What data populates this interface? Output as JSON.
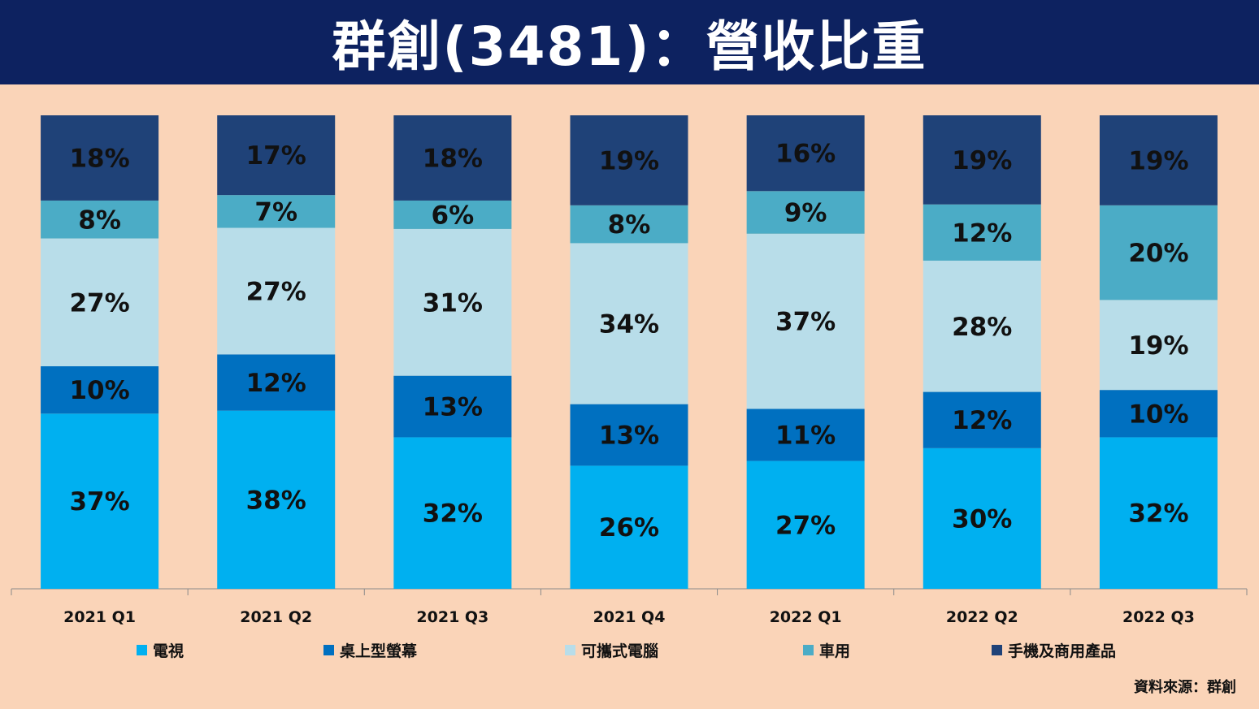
{
  "title": "群創(3481)：營收比重",
  "source": "資料來源：群創",
  "chart_data": {
    "type": "bar",
    "stacked": true,
    "percent": true,
    "categories": [
      "2021 Q1",
      "2021 Q2",
      "2021 Q3",
      "2021 Q4",
      "2022 Q1",
      "2022 Q2",
      "2022 Q3"
    ],
    "series": [
      {
        "name": "電視",
        "color": "#00b0f0",
        "values": [
          37,
          38,
          32,
          26,
          27,
          30,
          32
        ]
      },
      {
        "name": "桌上型螢幕",
        "color": "#0070c0",
        "values": [
          10,
          12,
          13,
          13,
          11,
          12,
          10
        ]
      },
      {
        "name": "可攜式電腦",
        "color": "#b8dde9",
        "values": [
          27,
          27,
          31,
          34,
          37,
          28,
          19
        ]
      },
      {
        "name": "車用",
        "color": "#4bacc6",
        "values": [
          8,
          7,
          6,
          8,
          9,
          12,
          20
        ]
      },
      {
        "name": "手機及商用產品",
        "color": "#1f4278",
        "values": [
          18,
          17,
          18,
          19,
          16,
          19,
          19
        ]
      }
    ],
    "legend_position": "bottom",
    "grid": false
  }
}
